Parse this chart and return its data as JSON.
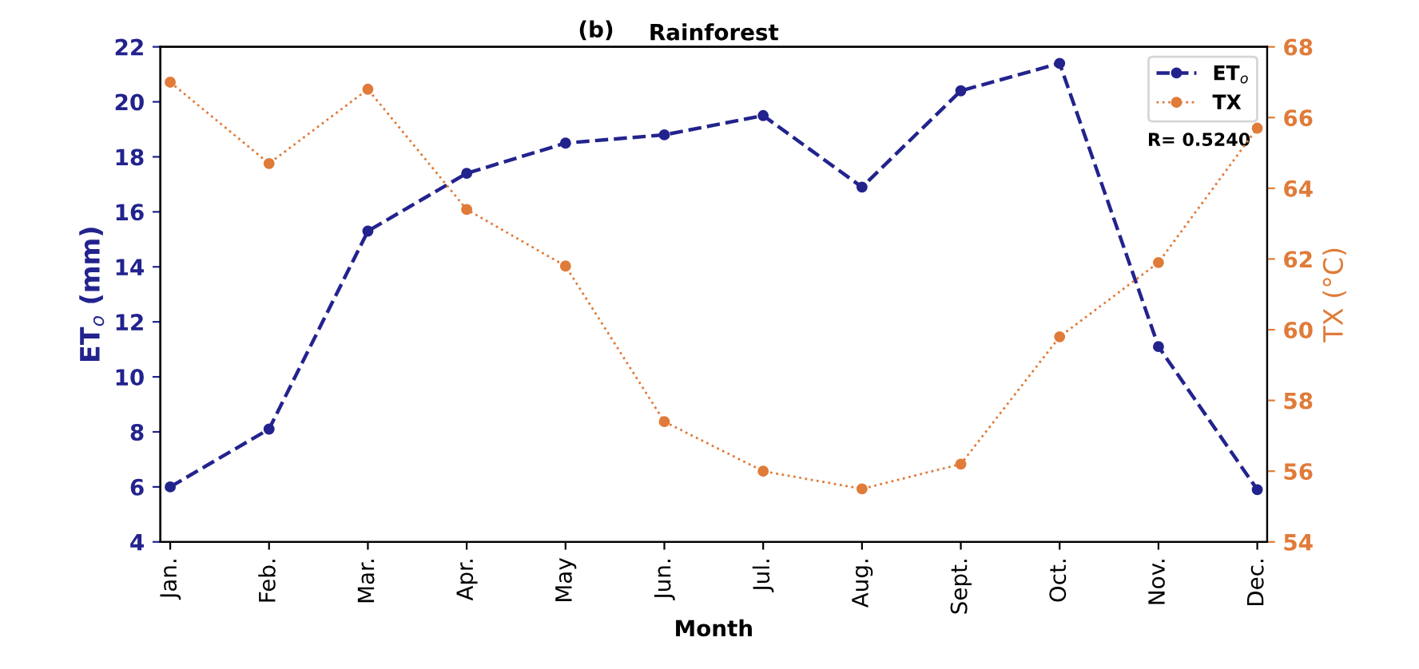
{
  "chart_data": {
    "type": "line",
    "title": "Rainforest",
    "xlabel": "Month",
    "ylabel": "ET$_{o}$ (mm)",
    "y2label": "TX (°C)",
    "categories": [
      "Jan.",
      "Feb.",
      "Mar.",
      "Apr.",
      "May",
      "Jun.",
      "Jul.",
      "Aug.",
      "Sept.",
      "Oct.",
      "Nov.",
      "Dec."
    ],
    "series": [
      {
        "name": "ET$_{o}$",
        "color": "#23238e",
        "line_style": "dashed",
        "values": [
          6.0,
          8.1,
          15.3,
          17.4,
          18.5,
          18.8,
          19.5,
          16.9,
          20.4,
          21.4,
          11.1,
          5.9
        ]
      },
      {
        "name": "TX",
        "color": "#e07b39",
        "line_style": "dotted",
        "axis": "y2",
        "values": [
          67.0,
          64.7,
          66.8,
          63.4,
          61.8,
          57.4,
          56.0,
          55.5,
          56.2,
          59.8,
          61.9,
          65.7
        ]
      }
    ],
    "ylim": [
      4,
      22
    ],
    "yticks": [
      4,
      6,
      8,
      10,
      12,
      14,
      16,
      18,
      20,
      22
    ],
    "y2lim": [
      54,
      68
    ],
    "y2ticks": [
      54,
      56,
      58,
      60,
      62,
      64,
      66,
      68
    ],
    "annotations": [
      "(b)",
      "R= 0.5240"
    ],
    "marker": "circle",
    "legend": "top right",
    "grid": false
  }
}
